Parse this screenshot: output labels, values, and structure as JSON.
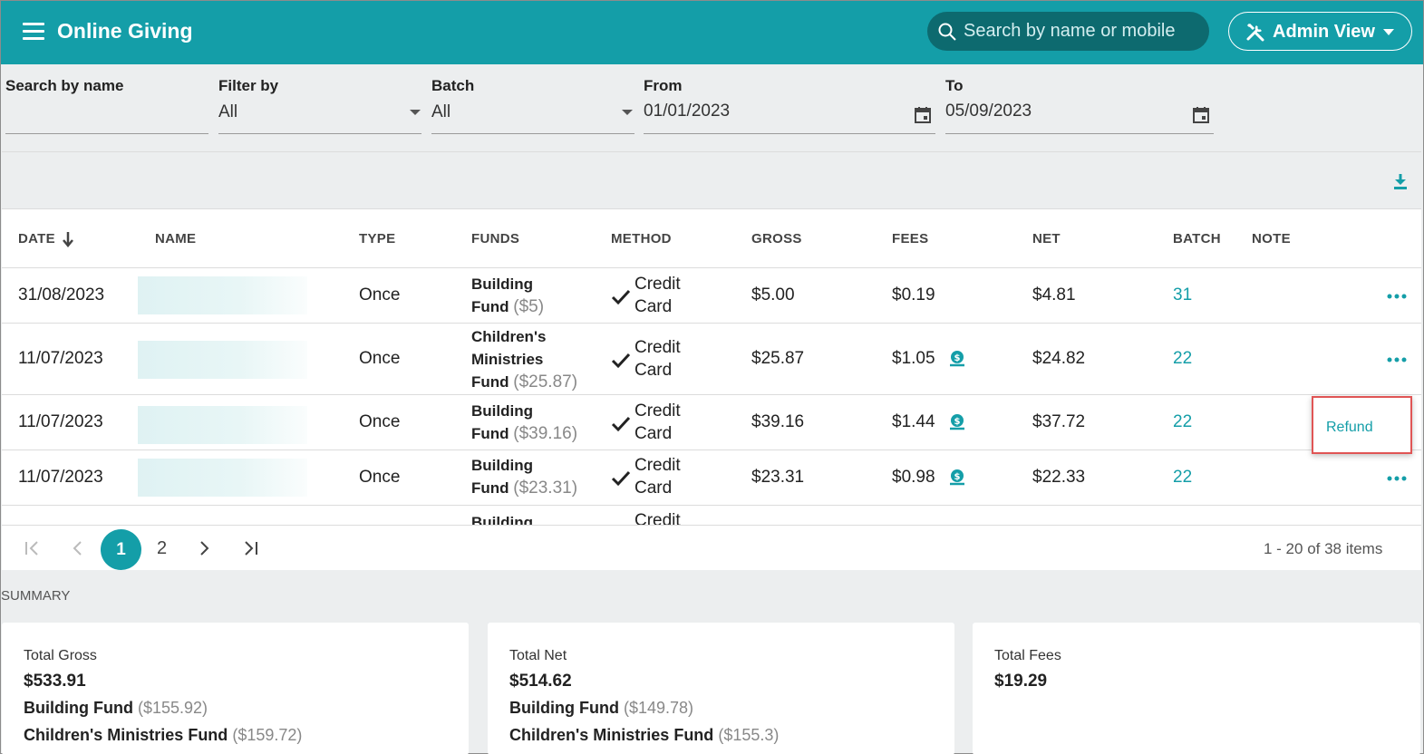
{
  "header": {
    "title": "Online Giving",
    "search_placeholder": "Search by name or mobile",
    "admin_label": "Admin View"
  },
  "filters": {
    "search_label": "Search by name",
    "filter_label": "Filter by",
    "filter_value": "All",
    "batch_label": "Batch",
    "batch_value": "All",
    "from_label": "From",
    "from_value": "01/01/2023",
    "to_label": "To",
    "to_value": "05/09/2023"
  },
  "table": {
    "columns": [
      "DATE",
      "NAME",
      "TYPE",
      "FUNDS",
      "METHOD",
      "GROSS",
      "FEES",
      "NET",
      "BATCH",
      "NOTE"
    ],
    "rows": [
      {
        "date": "31/08/2023",
        "type": "Once",
        "fund_lines": [
          "Building",
          "Fund"
        ],
        "fund_amount": "($5)",
        "method_lines": [
          "Credit",
          "Card"
        ],
        "gross": "$5.00",
        "fees": "$0.19",
        "net": "$4.81",
        "batch": "31"
      },
      {
        "date": "11/07/2023",
        "type": "Once",
        "fund_lines": [
          "Children's",
          "Ministries",
          "Fund"
        ],
        "fund_amount": "($25.87)",
        "method_lines": [
          "Credit",
          "Card"
        ],
        "gross": "$25.87",
        "fees": "$1.05",
        "net": "$24.82",
        "batch": "22"
      },
      {
        "date": "11/07/2023",
        "type": "Once",
        "fund_lines": [
          "Building",
          "Fund"
        ],
        "fund_amount": "($39.16)",
        "method_lines": [
          "Credit",
          "Card"
        ],
        "gross": "$39.16",
        "fees": "$1.44",
        "net": "$37.72",
        "batch": "22"
      },
      {
        "date": "11/07/2023",
        "type": "Once",
        "fund_lines": [
          "Building",
          "Fund"
        ],
        "fund_amount": "($23.31)",
        "method_lines": [
          "Credit",
          "Card"
        ],
        "gross": "$23.31",
        "fees": "$0.98",
        "net": "$22.33",
        "batch": "22"
      },
      {
        "fund_lines": [
          "Building"
        ],
        "method_lines": [
          "Credit"
        ]
      }
    ],
    "refund_label": "Refund"
  },
  "pager": {
    "pages": [
      "1",
      "2"
    ],
    "info": "1 - 20 of 38 items"
  },
  "summary": {
    "label": "SUMMARY",
    "cards": [
      {
        "title": "Total Gross",
        "total": "$533.91",
        "funds": [
          {
            "name": "Building Fund",
            "amount": "($155.92)"
          },
          {
            "name": "Children's Ministries Fund",
            "amount": "($159.72)"
          }
        ]
      },
      {
        "title": "Total Net",
        "total": "$514.62",
        "funds": [
          {
            "name": "Building Fund",
            "amount": "($149.78)"
          },
          {
            "name": "Children's Ministries Fund",
            "amount": "($155.3)"
          }
        ]
      },
      {
        "title": "Total Fees",
        "total": "$19.29",
        "funds": []
      }
    ]
  },
  "colors": {
    "primary": "#149ea8",
    "search_bg": "#0d6a6f",
    "highlight_border": "#e05555"
  }
}
